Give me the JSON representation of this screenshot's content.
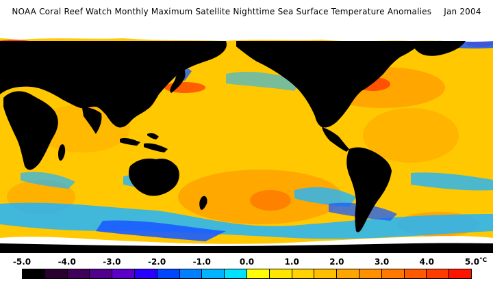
{
  "header": {
    "title": "NOAA Coral Reef Watch Monthly Maximum Satellite Nighttime Sea Surface Temperature Anomalies",
    "date": "Jan 2004"
  },
  "legend": {
    "unit": "°C",
    "ticks": [
      "-5.0",
      "-4.0",
      "-3.0",
      "-2.0",
      "-1.0",
      "0.0",
      "1.0",
      "2.0",
      "3.0",
      "4.0",
      "5.0"
    ],
    "colors": [
      "#000000",
      "#2a0030",
      "#3f005a",
      "#50008c",
      "#5a00c8",
      "#2800ff",
      "#0046ff",
      "#0080ff",
      "#00b4ff",
      "#00e0ff",
      "#ffff00",
      "#ffe600",
      "#ffd200",
      "#ffbe00",
      "#ffa500",
      "#ff9000",
      "#ff7800",
      "#ff5a00",
      "#ff3c00",
      "#ff1400"
    ]
  },
  "map_colors": {
    "land": "#000000",
    "ice": "#ffffff",
    "ocean_base": "#ffc800",
    "ocean_warm": "#ff9a00",
    "ocean_hot": "#ff4a00",
    "ocean_cool": "#20b4ff",
    "ocean_cold": "#1a5cff"
  }
}
